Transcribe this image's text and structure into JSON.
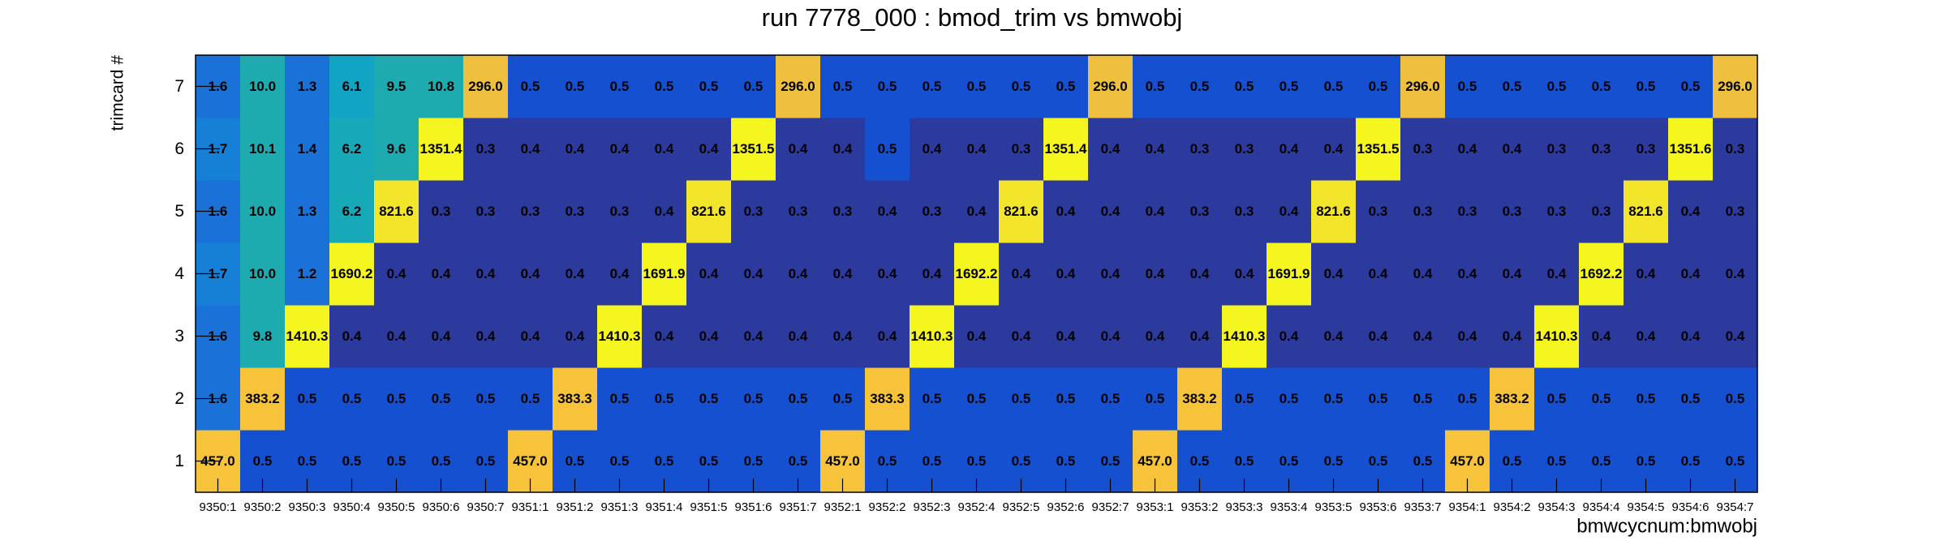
{
  "chart_data": {
    "type": "heatmap",
    "title": "run 7778_000 : bmod_trim vs bmwobj",
    "x_label": "bmwcycnum:bmwobj",
    "y_label": "trimcard #",
    "x": [
      "9350:1",
      "9350:2",
      "9350:3",
      "9350:4",
      "9350:5",
      "9350:6",
      "9350:7",
      "9351:1",
      "9351:2",
      "9351:3",
      "9351:4",
      "9351:5",
      "9351:6",
      "9351:7",
      "9352:1",
      "9352:2",
      "9352:3",
      "9352:4",
      "9352:5",
      "9352:6",
      "9352:7",
      "9353:1",
      "9353:2",
      "9353:3",
      "9353:4",
      "9353:5",
      "9353:6",
      "9353:7",
      "9354:1",
      "9354:2",
      "9354:3",
      "9354:4",
      "9354:5",
      "9354:6",
      "9354:7"
    ],
    "y": [
      1,
      2,
      3,
      4,
      5,
      6,
      7
    ],
    "zlog": true,
    "palette": [
      "#2c3a9e",
      "#1450d0",
      "#1462d4",
      "#1a72d8",
      "#1580d6",
      "#0e95cf",
      "#12a4c4",
      "#18a9b8",
      "#1eabb0",
      "#3ab3a0",
      "#5cb98c",
      "#7dbd7a",
      "#a0be68",
      "#c0bd58",
      "#dcbd48",
      "#eec03e",
      "#f6c33a",
      "#f7c832",
      "#f3e62a",
      "#f5f520"
    ],
    "values": [
      [
        457.0,
        0.5,
        0.5,
        0.5,
        0.5,
        0.5,
        0.5,
        457.0,
        0.5,
        0.5,
        0.5,
        0.5,
        0.5,
        0.5,
        457.0,
        0.5,
        0.5,
        0.5,
        0.5,
        0.5,
        0.5,
        457.0,
        0.5,
        0.5,
        0.5,
        0.5,
        0.5,
        0.5,
        457.0,
        0.5,
        0.5,
        0.5,
        0.5,
        0.5,
        0.5
      ],
      [
        1.6,
        383.2,
        0.5,
        0.5,
        0.5,
        0.5,
        0.5,
        0.5,
        383.3,
        0.5,
        0.5,
        0.5,
        0.5,
        0.5,
        0.5,
        383.3,
        0.5,
        0.5,
        0.5,
        0.5,
        0.5,
        0.5,
        383.2,
        0.5,
        0.5,
        0.5,
        0.5,
        0.5,
        0.5,
        383.2,
        0.5,
        0.5,
        0.5,
        0.5,
        0.5
      ],
      [
        1.6,
        9.8,
        1410.3,
        0.4,
        0.4,
        0.4,
        0.4,
        0.4,
        0.4,
        1410.3,
        0.4,
        0.4,
        0.4,
        0.4,
        0.4,
        0.4,
        1410.3,
        0.4,
        0.4,
        0.4,
        0.4,
        0.4,
        0.4,
        1410.3,
        0.4,
        0.4,
        0.4,
        0.4,
        0.4,
        0.4,
        1410.3,
        0.4,
        0.4,
        0.4,
        0.4
      ],
      [
        1.7,
        10.0,
        1.2,
        1690.2,
        0.4,
        0.4,
        0.4,
        0.4,
        0.4,
        0.4,
        1691.9,
        0.4,
        0.4,
        0.4,
        0.4,
        0.4,
        0.4,
        1692.2,
        0.4,
        0.4,
        0.4,
        0.4,
        0.4,
        0.4,
        1691.9,
        0.4,
        0.4,
        0.4,
        0.4,
        0.4,
        0.4,
        1692.2,
        0.4,
        0.4,
        0.4
      ],
      [
        1.6,
        10.0,
        1.3,
        6.2,
        821.6,
        0.3,
        0.3,
        0.3,
        0.3,
        0.3,
        0.4,
        821.6,
        0.3,
        0.3,
        0.3,
        0.4,
        0.3,
        0.4,
        821.6,
        0.4,
        0.4,
        0.4,
        0.3,
        0.3,
        0.4,
        821.6,
        0.3,
        0.3,
        0.3,
        0.3,
        0.3,
        0.3,
        821.6,
        0.4,
        0.3
      ],
      [
        1.7,
        10.1,
        1.4,
        6.2,
        9.6,
        1351.4,
        0.3,
        0.4,
        0.4,
        0.4,
        0.4,
        0.4,
        1351.5,
        0.4,
        0.4,
        0.5,
        0.4,
        0.4,
        0.3,
        1351.4,
        0.4,
        0.4,
        0.3,
        0.3,
        0.4,
        0.4,
        1351.5,
        0.3,
        0.4,
        0.4,
        0.3,
        0.3,
        0.3,
        1351.6,
        0.3
      ],
      [
        1.6,
        10.0,
        1.3,
        6.1,
        9.5,
        10.8,
        296.0,
        0.5,
        0.5,
        0.5,
        0.5,
        0.5,
        0.5,
        296.0,
        0.5,
        0.5,
        0.5,
        0.5,
        0.5,
        0.5,
        296.0,
        0.5,
        0.5,
        0.5,
        0.5,
        0.5,
        0.5,
        296.0,
        0.5,
        0.5,
        0.5,
        0.5,
        0.5,
        0.5,
        296.0
      ]
    ],
    "value_labels": [
      [
        "457.0",
        "0.5",
        "0.5",
        "0.5",
        "0.5",
        "0.5",
        "0.5",
        "457.0",
        "0.5",
        "0.5",
        "0.5",
        "0.5",
        "0.5",
        "0.5",
        "457.0",
        "0.5",
        "0.5",
        "0.5",
        "0.5",
        "0.5",
        "0.5",
        "457.0",
        "0.5",
        "0.5",
        "0.5",
        "0.5",
        "0.5",
        "0.5",
        "457.0",
        "0.5",
        "0.5",
        "0.5",
        "0.5",
        "0.5",
        "0.5"
      ],
      [
        "1.6",
        "383.2",
        "0.5",
        "0.5",
        "0.5",
        "0.5",
        "0.5",
        "0.5",
        "383.3",
        "0.5",
        "0.5",
        "0.5",
        "0.5",
        "0.5",
        "0.5",
        "383.3",
        "0.5",
        "0.5",
        "0.5",
        "0.5",
        "0.5",
        "0.5",
        "383.2",
        "0.5",
        "0.5",
        "0.5",
        "0.5",
        "0.5",
        "0.5",
        "383.2",
        "0.5",
        "0.5",
        "0.5",
        "0.5",
        "0.5"
      ],
      [
        "1.6",
        "9.8",
        "1410.3",
        "0.4",
        "0.4",
        "0.4",
        "0.4",
        "0.4",
        "0.4",
        "1410.3",
        "0.4",
        "0.4",
        "0.4",
        "0.4",
        "0.4",
        "0.4",
        "1410.3",
        "0.4",
        "0.4",
        "0.4",
        "0.4",
        "0.4",
        "0.4",
        "1410.3",
        "0.4",
        "0.4",
        "0.4",
        "0.4",
        "0.4",
        "0.4",
        "1410.3",
        "0.4",
        "0.4",
        "0.4",
        "0.4"
      ],
      [
        "1.7",
        "10.0",
        "1.2",
        "1690.2",
        "0.4",
        "0.4",
        "0.4",
        "0.4",
        "0.4",
        "0.4",
        "1691.9",
        "0.4",
        "0.4",
        "0.4",
        "0.4",
        "0.4",
        "0.4",
        "1692.2",
        "0.4",
        "0.4",
        "0.4",
        "0.4",
        "0.4",
        "0.4",
        "1691.9",
        "0.4",
        "0.4",
        "0.4",
        "0.4",
        "0.4",
        "0.4",
        "1692.2",
        "0.4",
        "0.4",
        "0.4"
      ],
      [
        "1.6",
        "10.0",
        "1.3",
        "6.2",
        "821.6",
        "0.3",
        "0.3",
        "0.3",
        "0.3",
        "0.3",
        "0.4",
        "821.6",
        "0.3",
        "0.3",
        "0.3",
        "0.4",
        "0.3",
        "0.4",
        "821.6",
        "0.4",
        "0.4",
        "0.4",
        "0.3",
        "0.3",
        "0.4",
        "821.6",
        "0.3",
        "0.3",
        "0.3",
        "0.3",
        "0.3",
        "0.3",
        "821.6",
        "0.4",
        "0.3"
      ],
      [
        "1.7",
        "10.1",
        "1.4",
        "6.2",
        "9.6",
        "1351.4",
        "0.3",
        "0.4",
        "0.4",
        "0.4",
        "0.4",
        "0.4",
        "1351.5",
        "0.4",
        "0.4",
        "0.5",
        "0.4",
        "0.4",
        "0.3",
        "1351.4",
        "0.4",
        "0.4",
        "0.3",
        "0.3",
        "0.4",
        "0.4",
        "1351.5",
        "0.3",
        "0.4",
        "0.4",
        "0.3",
        "0.3",
        "0.3",
        "1351.6",
        "0.3"
      ],
      [
        "1.6",
        "10.0",
        "1.3",
        "6.1",
        "9.5",
        "10.8",
        "296.0",
        "0.5",
        "0.5",
        "0.5",
        "0.5",
        "0.5",
        "0.5",
        "296.0",
        "0.5",
        "0.5",
        "0.5",
        "0.5",
        "0.5",
        "0.5",
        "296.0",
        "0.5",
        "0.5",
        "0.5",
        "0.5",
        "0.5",
        "0.5",
        "296.0",
        "0.5",
        "0.5",
        "0.5",
        "0.5",
        "0.5",
        "0.5",
        "296.0"
      ]
    ]
  }
}
